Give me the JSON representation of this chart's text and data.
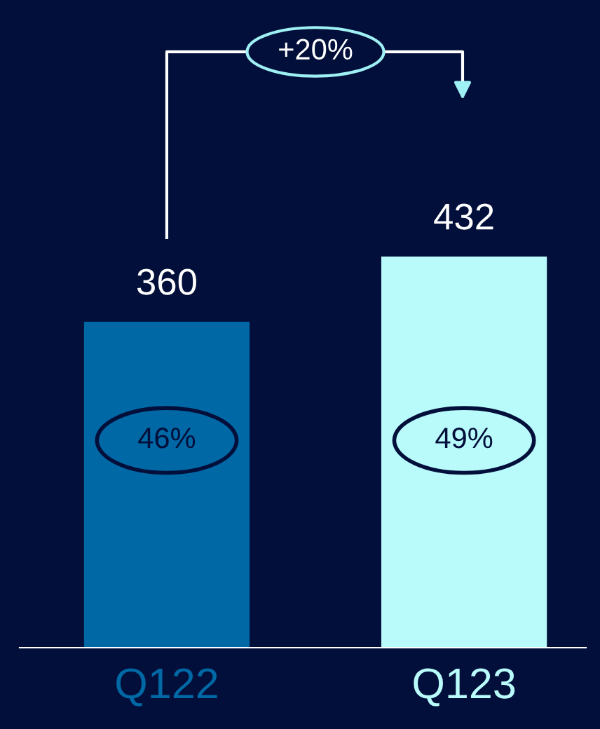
{
  "chart_data": {
    "type": "bar",
    "categories": [
      "Q122",
      "Q123"
    ],
    "values": [
      360,
      432
    ],
    "colors": [
      "#0068a5",
      "#b9fbfb"
    ],
    "data_labels": true,
    "annotations": [
      "+20%",
      "46%",
      "49%"
    ],
    "grid": false,
    "legend": false
  }
}
